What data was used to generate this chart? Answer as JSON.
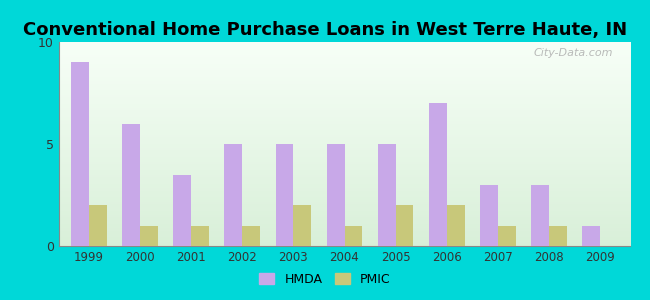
{
  "title": "Conventional Home Purchase Loans in West Terre Haute, IN",
  "years": [
    1999,
    2000,
    2001,
    2002,
    2003,
    2004,
    2005,
    2006,
    2007,
    2008,
    2009
  ],
  "hmda": [
    9,
    6,
    3.5,
    5,
    5,
    5,
    5,
    7,
    3,
    3,
    1
  ],
  "pmic": [
    2,
    1,
    1,
    1,
    2,
    1,
    2,
    2,
    1,
    1,
    0
  ],
  "hmda_color": "#c8a8e8",
  "pmic_color": "#c8c87a",
  "background_outer": "#00d8d8",
  "ylim": [
    0,
    10
  ],
  "yticks": [
    0,
    5,
    10
  ],
  "bar_width": 0.35,
  "title_fontsize": 13,
  "watermark": "City-Data.com",
  "legend_labels": [
    "HMDA",
    "PMIC"
  ]
}
